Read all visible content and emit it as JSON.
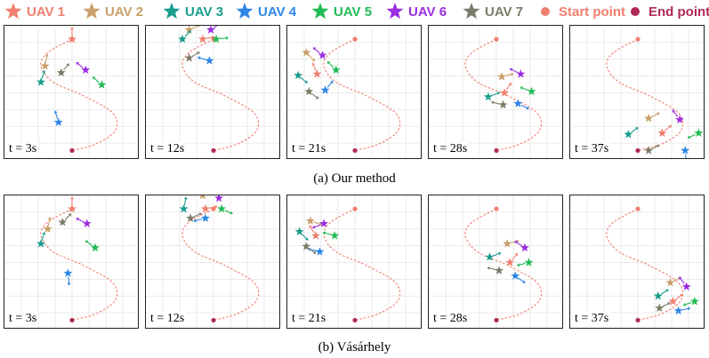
{
  "legend": {
    "items": [
      {
        "label": "UAV 1",
        "color": "#f07f6f",
        "marker": "star"
      },
      {
        "label": "UAV 2",
        "color": "#c9a06a",
        "marker": "star"
      },
      {
        "label": "UAV 3",
        "color": "#1a9e8f",
        "marker": "star"
      },
      {
        "label": "UAV 4",
        "color": "#2d86e6",
        "marker": "star"
      },
      {
        "label": "UAV 5",
        "color": "#22bb55",
        "marker": "star"
      },
      {
        "label": "UAV 6",
        "color": "#9b2de0",
        "marker": "star"
      },
      {
        "label": "UAV 7",
        "color": "#7b7b68",
        "marker": "star"
      },
      {
        "label": "Start point",
        "color": "#f07f6f",
        "marker": "dot"
      },
      {
        "label": "End point",
        "color": "#b02a55",
        "marker": "dot"
      }
    ]
  },
  "chart_data": {
    "type": "scatter",
    "description_units": "normalized plot coordinates, x and y in [0,1], y measured from top",
    "path": {
      "style": "dashed",
      "color": "#f07f6f",
      "points": [
        [
          0.5,
          0.1
        ],
        [
          0.32,
          0.2
        ],
        [
          0.27,
          0.3
        ],
        [
          0.36,
          0.42
        ],
        [
          0.58,
          0.52
        ],
        [
          0.8,
          0.65
        ],
        [
          0.82,
          0.78
        ],
        [
          0.68,
          0.88
        ],
        [
          0.5,
          0.93
        ]
      ]
    },
    "start_point": [
      0.5,
      0.1
    ],
    "end_point": [
      0.5,
      0.93
    ],
    "rows": [
      {
        "caption": "(a) Our method",
        "panels": [
          {
            "time": "t = 3s",
            "uavs": [
              [
                0.5,
                0.1,
                0,
                -1
              ],
              [
                0.3,
                0.3,
                0.2,
                -1
              ],
              [
                0.27,
                0.42,
                0.3,
                -1
              ],
              [
                0.4,
                0.72,
                -0.3,
                -1
              ],
              [
                0.72,
                0.44,
                -0.7,
                -0.6
              ],
              [
                0.6,
                0.33,
                -0.6,
                -0.5
              ],
              [
                0.42,
                0.35,
                0.6,
                -0.7
              ]
            ]
          },
          {
            "time": "t = 12s",
            "uavs": [
              [
                0.42,
                0.1,
                1,
                -0.2
              ],
              [
                0.32,
                0.03,
                0.9,
                -0.4
              ],
              [
                0.27,
                0.1,
                0.7,
                -0.7
              ],
              [
                0.47,
                0.26,
                -0.7,
                -0.2
              ],
              [
                0.52,
                0.1,
                0.9,
                -0.1
              ],
              [
                0.48,
                0.03,
                0.9,
                -0.6
              ],
              [
                0.32,
                0.24,
                0.9,
                -0.5
              ]
            ]
          },
          {
            "time": "t = 21s",
            "uavs": [
              [
                0.22,
                0.36,
                -0.4,
                -1
              ],
              [
                0.14,
                0.2,
                0.7,
                0.7
              ],
              [
                0.08,
                0.37,
                0.6,
                0.5
              ],
              [
                0.28,
                0.48,
                0.5,
                -0.6
              ],
              [
                0.36,
                0.33,
                -0.6,
                -0.6
              ],
              [
                0.26,
                0.22,
                -0.6,
                -0.5
              ],
              [
                0.16,
                0.49,
                0.8,
                0.6
              ]
            ]
          },
          {
            "time": "t = 28s",
            "uavs": [
              [
                0.56,
                0.5,
                0.4,
                -0.6
              ],
              [
                0.54,
                0.38,
                0.8,
                -0.2
              ],
              [
                0.44,
                0.53,
                0.8,
                -0.3
              ],
              [
                0.66,
                0.58,
                0.6,
                0.3
              ],
              [
                0.76,
                0.49,
                -0.8,
                -0.3
              ],
              [
                0.68,
                0.36,
                -0.6,
                -0.3
              ],
              [
                0.55,
                0.59,
                -0.8,
                -0.2
              ]
            ]
          },
          {
            "time": "t = 37s",
            "uavs": [
              [
                0.68,
                0.8,
                0.7,
                -0.6
              ],
              [
                0.58,
                0.69,
                0.8,
                -0.4
              ],
              [
                0.43,
                0.81,
                0.7,
                -0.5
              ],
              [
                0.85,
                0.93,
                0.1,
                1
              ],
              [
                0.95,
                0.8,
                -0.9,
                0.4
              ],
              [
                0.81,
                0.7,
                -0.6,
                -0.8
              ],
              [
                0.58,
                0.93,
                1,
                -0.5
              ]
            ]
          }
        ]
      },
      {
        "caption": "(b) Vásárhely",
        "panels": [
          {
            "time": "t = 3s",
            "uavs": [
              [
                0.5,
                0.1,
                0,
                -1
              ],
              [
                0.32,
                0.25,
                0.2,
                -1
              ],
              [
                0.27,
                0.36,
                0.3,
                -1
              ],
              [
                0.47,
                0.58,
                0.1,
                1
              ],
              [
                0.67,
                0.39,
                -0.8,
                -0.6
              ],
              [
                0.61,
                0.21,
                -0.8,
                -0.4
              ],
              [
                0.43,
                0.2,
                0.6,
                -0.6
              ]
            ]
          },
          {
            "time": "t = 12s",
            "uavs": [
              [
                0.44,
                0.1,
                1,
                -0.2
              ],
              [
                0.42,
                0.0,
                0.1,
                -1
              ],
              [
                0.28,
                0.1,
                0.2,
                -1
              ],
              [
                0.44,
                0.17,
                -0.8,
                0.2
              ],
              [
                0.56,
                0.1,
                0.9,
                0.4
              ],
              [
                0.54,
                0.02,
                -0.4,
                -0.9
              ],
              [
                0.33,
                0.17,
                0.9,
                -0.4
              ]
            ]
          },
          {
            "time": "t = 21s",
            "uavs": [
              [
                0.21,
                0.3,
                -0.6,
                -1
              ],
              [
                0.17,
                0.19,
                0.9,
                0.3
              ],
              [
                0.09,
                0.27,
                0.6,
                0.6
              ],
              [
                0.24,
                0.42,
                -0.8,
                -0.2
              ],
              [
                0.35,
                0.3,
                -0.7,
                -0.2
              ],
              [
                0.27,
                0.21,
                -0.8,
                0.3
              ],
              [
                0.14,
                0.38,
                0.8,
                0.6
              ]
            ]
          },
          {
            "time": "t = 28s",
            "uavs": [
              [
                0.6,
                0.5,
                0.5,
                -0.6
              ],
              [
                0.58,
                0.36,
                0.8,
                -0.2
              ],
              [
                0.45,
                0.46,
                0.8,
                -0.3
              ],
              [
                0.64,
                0.6,
                0.7,
                0.5
              ],
              [
                0.74,
                0.5,
                -0.8,
                0.2
              ],
              [
                0.71,
                0.39,
                -0.6,
                -0.4
              ],
              [
                0.52,
                0.56,
                -0.8,
                -0.2
              ]
            ]
          },
          {
            "time": "t = 37s",
            "uavs": [
              [
                0.76,
                0.79,
                0.8,
                -0.6
              ],
              [
                0.74,
                0.65,
                0.8,
                -0.4
              ],
              [
                0.65,
                0.75,
                0.8,
                -0.5
              ],
              [
                0.8,
                0.86,
                0.9,
                -0.2
              ],
              [
                0.92,
                0.79,
                -0.9,
                0.3
              ],
              [
                0.86,
                0.68,
                -0.6,
                -0.8
              ],
              [
                0.66,
                0.84,
                1,
                -0.5
              ]
            ]
          }
        ]
      }
    ]
  }
}
